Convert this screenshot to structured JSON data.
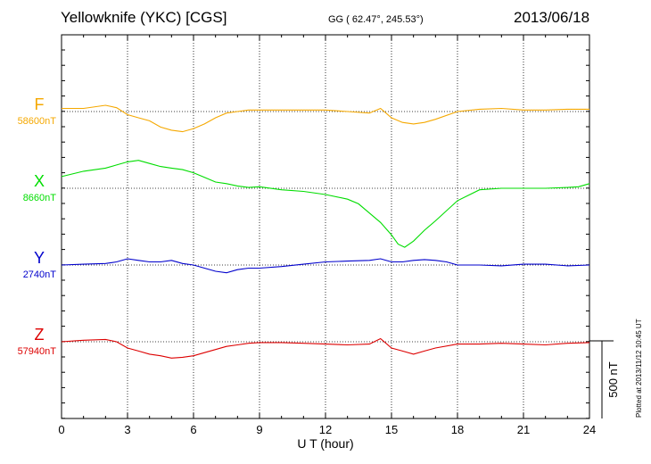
{
  "header": {
    "station": "Yellowknife (YKC)  [CGS]",
    "coords": "GG ( 62.47°, 245.53°)",
    "date": "2013/06/18",
    "plotted": "Plotted at 2013/11/12 10:45 UT"
  },
  "chart_data": {
    "type": "line",
    "xlabel": "U T (hour)",
    "xlim": [
      0,
      24
    ],
    "xticks": [
      "0",
      "3",
      "6",
      "9",
      "12",
      "15",
      "18",
      "21",
      "24"
    ],
    "scale_bar_label": "500 nT",
    "scale_bar_nT": 500,
    "series": [
      {
        "name": "F",
        "baseline_label": "58600nT",
        "color": "#f5a800",
        "x": [
          0,
          1,
          2,
          2.5,
          3,
          3.5,
          4,
          4.5,
          5,
          5.5,
          6,
          6.5,
          7,
          7.5,
          8,
          8.5,
          9,
          10,
          11,
          12,
          13,
          14,
          14.5,
          15,
          15.5,
          16,
          16.5,
          17,
          18,
          19,
          20,
          21,
          22,
          23,
          24
        ],
        "y": [
          58620,
          58620,
          58640,
          58625,
          58580,
          58560,
          58540,
          58500,
          58480,
          58470,
          58490,
          58520,
          58560,
          58590,
          58600,
          58610,
          58610,
          58610,
          58610,
          58610,
          58600,
          58590,
          58620,
          58560,
          58530,
          58520,
          58530,
          58550,
          58600,
          58615,
          58620,
          58610,
          58610,
          58615,
          58615
        ]
      },
      {
        "name": "X",
        "baseline_label": "8660nT",
        "color": "#00dd00",
        "x": [
          0,
          1,
          2,
          2.5,
          3,
          3.5,
          4,
          4.5,
          5,
          5.5,
          6,
          6.5,
          7,
          7.5,
          8,
          8.5,
          9,
          10,
          11,
          12,
          13,
          13.5,
          14,
          14.5,
          15,
          15.3,
          15.6,
          16,
          16.5,
          17,
          18,
          19,
          20,
          21,
          22,
          23,
          23.5,
          24
        ],
        "y": [
          8735,
          8770,
          8790,
          8810,
          8830,
          8840,
          8820,
          8800,
          8790,
          8780,
          8760,
          8730,
          8700,
          8690,
          8675,
          8665,
          8670,
          8650,
          8640,
          8620,
          8590,
          8560,
          8500,
          8440,
          8360,
          8300,
          8280,
          8320,
          8390,
          8450,
          8580,
          8650,
          8660,
          8660,
          8660,
          8665,
          8670,
          8690
        ]
      },
      {
        "name": "Y",
        "baseline_label": "2740nT",
        "color": "#0000cc",
        "x": [
          0,
          1,
          2,
          2.5,
          3,
          3.5,
          4,
          4.5,
          5,
          5.5,
          6,
          6.5,
          7,
          7.5,
          8,
          8.5,
          9,
          10,
          11,
          12,
          13,
          14,
          14.5,
          15,
          15.5,
          16,
          16.5,
          17,
          17.5,
          18,
          19,
          20,
          21,
          22,
          23,
          24
        ],
        "y": [
          2740,
          2745,
          2750,
          2760,
          2780,
          2770,
          2760,
          2760,
          2770,
          2750,
          2740,
          2720,
          2700,
          2690,
          2710,
          2720,
          2720,
          2730,
          2745,
          2760,
          2765,
          2770,
          2780,
          2760,
          2760,
          2770,
          2775,
          2770,
          2760,
          2740,
          2740,
          2735,
          2745,
          2745,
          2735,
          2740
        ]
      },
      {
        "name": "Z",
        "baseline_label": "57940nT",
        "color": "#dd0000",
        "x": [
          0,
          1,
          2,
          2.5,
          3,
          3.5,
          4,
          4.5,
          5,
          5.5,
          6,
          6.5,
          7,
          7.5,
          8,
          8.5,
          9,
          10,
          11,
          12,
          13,
          14,
          14.5,
          15,
          15.5,
          16,
          16.5,
          17,
          18,
          19,
          20,
          21,
          22,
          23,
          24
        ],
        "y": [
          57940,
          57950,
          57955,
          57940,
          57900,
          57880,
          57860,
          57850,
          57835,
          57840,
          57850,
          57870,
          57890,
          57910,
          57920,
          57930,
          57935,
          57935,
          57930,
          57925,
          57920,
          57925,
          57960,
          57900,
          57880,
          57860,
          57880,
          57900,
          57925,
          57925,
          57930,
          57925,
          57920,
          57930,
          57935
        ]
      }
    ]
  }
}
